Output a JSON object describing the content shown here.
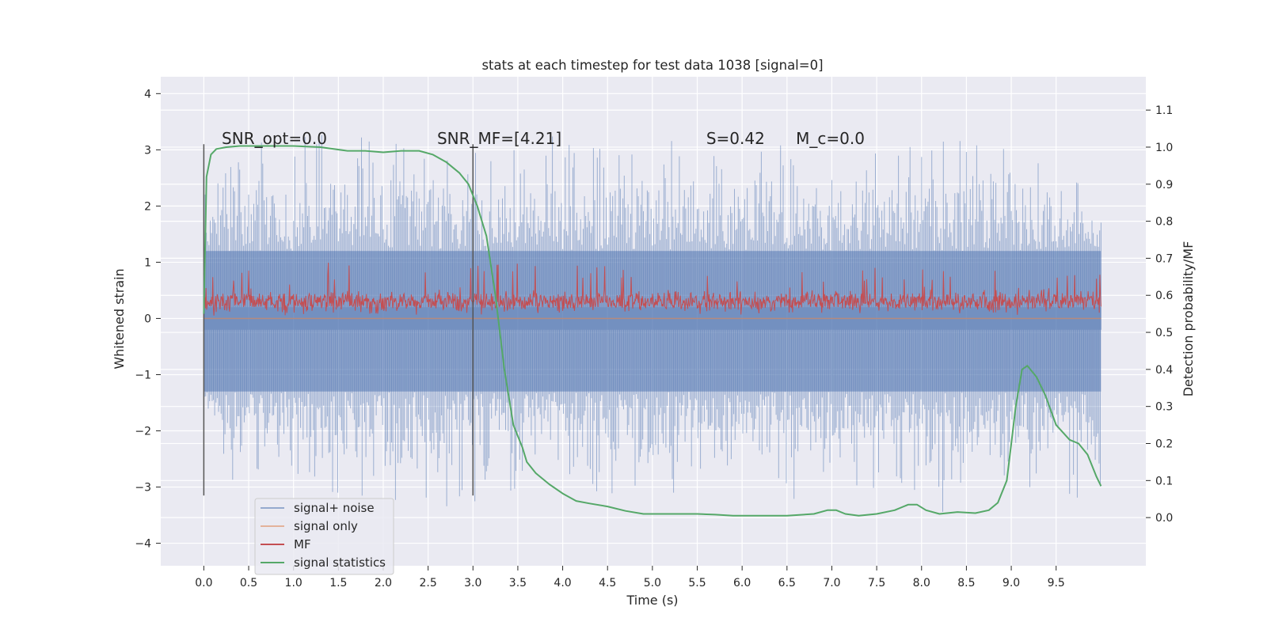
{
  "chart_data": {
    "type": "line",
    "title": "stats at each timestep for test data 1038 [signal=0]",
    "xlabel": "Time (s)",
    "ylabel_left": "Whitened strain",
    "ylabel_right": "Detection probability/MF",
    "xlim": [
      -0.48,
      10.5
    ],
    "ylim_left": [
      -4.4,
      4.3
    ],
    "ylim_right": [
      -0.13,
      1.19
    ],
    "x_ticks": [
      0.0,
      0.5,
      1.0,
      1.5,
      2.0,
      2.5,
      3.0,
      3.5,
      4.0,
      4.5,
      5.0,
      5.5,
      6.0,
      6.5,
      7.0,
      7.5,
      8.0,
      8.5,
      9.0,
      9.5
    ],
    "x_tick_labels": [
      "0.0",
      "0.5",
      "1.0",
      "1.5",
      "2.0",
      "2.5",
      "3.0",
      "3.5",
      "4.0",
      "4.5",
      "5.0",
      "5.5",
      "6.0",
      "6.5",
      "7.0",
      "7.5",
      "8.0",
      "8.5",
      "9.0",
      "9.5"
    ],
    "y_left_ticks": [
      -4,
      -3,
      -2,
      -1,
      0,
      1,
      2,
      3,
      4
    ],
    "y_left_tick_labels": [
      "−4",
      "−3",
      "−2",
      "−1",
      "0",
      "1",
      "2",
      "3",
      "4"
    ],
    "y_right_ticks": [
      0.0,
      0.1,
      0.2,
      0.3,
      0.4,
      0.5,
      0.6,
      0.7,
      0.8,
      0.9,
      1.0,
      1.1
    ],
    "y_right_tick_labels": [
      "0.0",
      "0.1",
      "0.2",
      "0.3",
      "0.4",
      "0.5",
      "0.6",
      "0.7",
      "0.8",
      "0.9",
      "1.0",
      "1.1"
    ],
    "grid": true,
    "legend_position": "lower-left",
    "colors": {
      "noise": "#4c72b0",
      "signal": "#dd8452",
      "mf": "#c44e52",
      "stat": "#55a868",
      "vline": "#555555",
      "background": "#eaeaf2",
      "grid": "#ffffff"
    },
    "vertical_lines_x": [
      0.0,
      3.0
    ],
    "vertical_lines_ylim_left": [
      -3.15,
      3.1
    ],
    "annotations": [
      {
        "label": "SNR_opt=0.0",
        "x": 0.2,
        "y": 3.1
      },
      {
        "label": "SNR_MF=[4.21]",
        "x": 2.6,
        "y": 3.1
      },
      {
        "label": "S=0.42",
        "x": 5.6,
        "y": 3.1
      },
      {
        "label": "M_c=0.0",
        "x": 6.6,
        "y": 3.1
      }
    ],
    "series": [
      {
        "name": "signal+ noise",
        "axis": "left",
        "kind": "noise",
        "x_range": [
          0.0,
          10.0
        ],
        "envelope": {
          "x": [
            0,
            0.3,
            0.5,
            1.0,
            1.5,
            2.0,
            2.5,
            3.0,
            3.5,
            4.0,
            4.5,
            5.0,
            5.5,
            6.0,
            6.5,
            7.0,
            7.5,
            8.0,
            8.5,
            9.0,
            9.5,
            10.0
          ],
          "upper": [
            2.5,
            3.95,
            3.1,
            3.2,
            3.3,
            3.3,
            3.2,
            2.9,
            3.7,
            3.1,
            3.0,
            3.2,
            3.1,
            3.1,
            3.2,
            3.0,
            3.2,
            3.0,
            3.3,
            3.0,
            2.6,
            2.2
          ],
          "lower": [
            -1.4,
            -2.9,
            -2.6,
            -3.0,
            -3.1,
            -3.2,
            -3.3,
            -3.4,
            -3.0,
            -3.0,
            -3.1,
            -3.2,
            -3.0,
            -3.0,
            -3.5,
            -3.2,
            -3.0,
            -3.3,
            -3.6,
            -3.0,
            -3.0,
            -3.4
          ],
          "dense_upper": 1.2,
          "dense_lower": -1.3
        }
      },
      {
        "name": "signal only",
        "axis": "left",
        "kind": "flat",
        "x": [
          0.0,
          10.0
        ],
        "y": [
          0.0,
          0.0
        ]
      },
      {
        "name": "MF",
        "axis": "left",
        "kind": "band",
        "x_range": [
          0.0,
          10.0
        ],
        "band": {
          "base": 0.05,
          "mean": 0.3,
          "peaks_max": 1.0
        }
      },
      {
        "name": "signal statistics",
        "axis": "right",
        "kind": "line",
        "x": [
          0.0,
          0.03,
          0.08,
          0.14,
          0.25,
          0.4,
          0.7,
          1.0,
          1.3,
          1.6,
          1.8,
          2.0,
          2.2,
          2.4,
          2.55,
          2.7,
          2.85,
          2.95,
          3.05,
          3.15,
          3.25,
          3.35,
          3.45,
          3.55,
          3.6,
          3.7,
          3.85,
          4.0,
          4.15,
          4.3,
          4.5,
          4.7,
          4.9,
          5.1,
          5.3,
          5.5,
          5.7,
          5.9,
          6.2,
          6.5,
          6.8,
          6.95,
          7.05,
          7.15,
          7.3,
          7.5,
          7.7,
          7.85,
          7.95,
          8.05,
          8.2,
          8.4,
          8.6,
          8.75,
          8.85,
          8.95,
          9.0,
          9.05,
          9.12,
          9.18,
          9.28,
          9.38,
          9.5,
          9.65,
          9.75,
          9.85,
          9.95,
          10.0
        ],
        "y": [
          0.55,
          0.92,
          0.98,
          0.995,
          1.0,
          1.003,
          1.003,
          1.003,
          1.0,
          0.99,
          0.99,
          0.986,
          0.99,
          0.99,
          0.98,
          0.96,
          0.93,
          0.9,
          0.84,
          0.76,
          0.6,
          0.4,
          0.25,
          0.19,
          0.15,
          0.12,
          0.09,
          0.065,
          0.045,
          0.038,
          0.03,
          0.018,
          0.01,
          0.01,
          0.01,
          0.01,
          0.008,
          0.005,
          0.005,
          0.005,
          0.01,
          0.02,
          0.02,
          0.01,
          0.005,
          0.01,
          0.02,
          0.035,
          0.035,
          0.02,
          0.01,
          0.015,
          0.012,
          0.02,
          0.04,
          0.1,
          0.2,
          0.3,
          0.4,
          0.41,
          0.38,
          0.33,
          0.25,
          0.21,
          0.2,
          0.17,
          0.11,
          0.085
        ]
      }
    ]
  }
}
